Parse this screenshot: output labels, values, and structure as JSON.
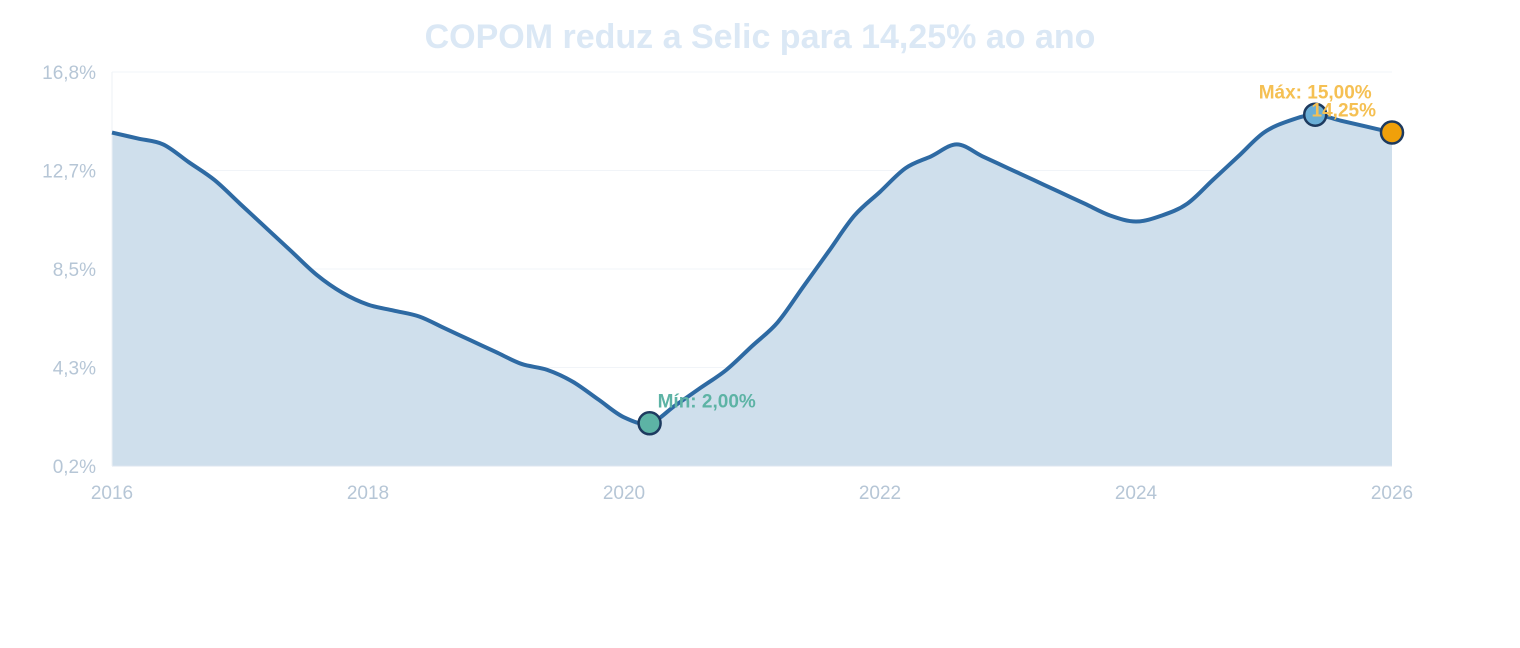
{
  "chart_data": {
    "type": "area",
    "title": "COPOM reduz a Selic para 14,25% ao ano",
    "xlabel": "",
    "ylabel": "",
    "xlim": [
      2016,
      2026
    ],
    "ylim": [
      0.2,
      16.8
    ],
    "y_ticks": [
      "0,2%",
      "4,3%",
      "8,5%",
      "12,7%",
      "16,8%"
    ],
    "x_ticks": [
      "2016",
      "2018",
      "2020",
      "2022",
      "2024",
      "2026"
    ],
    "grid": "horizontal",
    "colors": {
      "line": "#2e6aa3",
      "fill": "#cfdfec",
      "title": "#dbe8f5",
      "ticks": "#b6c6d6",
      "max": "#f5c053",
      "min": "#5db3a5",
      "last_point": "#f0a00a",
      "marker_stroke": "#1d3a5f"
    },
    "x": [
      2016.0,
      2016.2,
      2016.4,
      2016.6,
      2016.8,
      2017.0,
      2017.2,
      2017.4,
      2017.6,
      2017.8,
      2018.0,
      2018.2,
      2018.4,
      2018.6,
      2018.8,
      2019.0,
      2019.2,
      2019.4,
      2019.6,
      2019.8,
      2020.0,
      2020.2,
      2020.4,
      2020.6,
      2020.8,
      2021.0,
      2021.2,
      2021.4,
      2021.6,
      2021.8,
      2022.0,
      2022.2,
      2022.4,
      2022.6,
      2022.8,
      2023.0,
      2023.2,
      2023.4,
      2023.6,
      2023.8,
      2024.0,
      2024.2,
      2024.4,
      2024.6,
      2024.8,
      2025.0,
      2025.2,
      2025.4,
      2025.6,
      2025.8,
      2026.0
    ],
    "series": [
      {
        "values": [
          14.25,
          14.0,
          13.75,
          13.0,
          12.25,
          11.25,
          10.25,
          9.25,
          8.25,
          7.5,
          7.0,
          6.75,
          6.5,
          6.0,
          5.5,
          5.0,
          4.5,
          4.25,
          3.75,
          3.0,
          2.25,
          2.0,
          2.75,
          3.5,
          4.25,
          5.25,
          6.25,
          7.75,
          9.25,
          10.75,
          11.75,
          12.75,
          13.25,
          13.75,
          13.25,
          12.75,
          12.25,
          11.75,
          11.25,
          10.75,
          10.5,
          10.75,
          11.25,
          12.25,
          13.25,
          14.25,
          14.75,
          15.0,
          14.75,
          14.5,
          14.25
        ]
      }
    ],
    "annotations": {
      "max_label": "Máx: 15,00%",
      "max_x": 2025.4,
      "max_y": 15.0,
      "min_label": "Mín: 2,00%",
      "min_x": 2020.2,
      "min_y": 2.0,
      "last_label": "14,25%",
      "last_x": 2026.0,
      "last_y": 14.25
    }
  }
}
